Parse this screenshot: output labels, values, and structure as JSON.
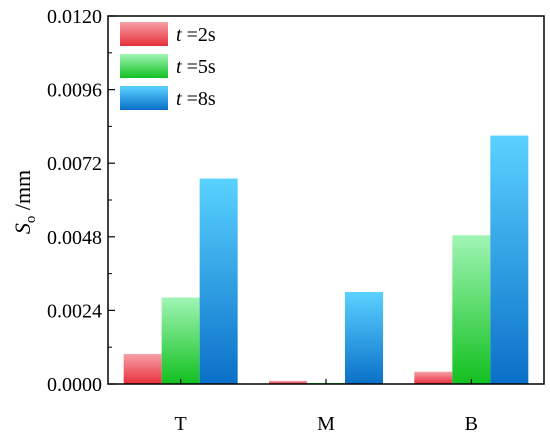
{
  "chart_data": {
    "type": "bar",
    "categories": [
      "T",
      "M",
      "B"
    ],
    "series": [
      {
        "name_var": "t",
        "name_rest": " =2s",
        "values": [
          0.00098,
          0.0001,
          0.0004
        ],
        "color_top": "#f7a0a8",
        "color_bottom": "#e8303a"
      },
      {
        "name_var": "t",
        "name_rest": " =5s",
        "values": [
          0.00282,
          4e-05,
          0.00485
        ],
        "color_top": "#a0f5b4",
        "color_bottom": "#12c020"
      },
      {
        "name_var": "t",
        "name_rest": " =8s",
        "values": [
          0.0067,
          0.003,
          0.0081
        ],
        "color_top": "#5ad2ff",
        "color_bottom": "#0a70c8"
      }
    ],
    "ylabel_main": "S",
    "ylabel_sub": "o",
    "ylabel_unit": " /mm",
    "ylim": [
      0,
      0.012
    ],
    "yticks": [
      "0.0000",
      "0.0024",
      "0.0048",
      "0.0072",
      "0.0096",
      "0.0120"
    ],
    "legend_position": "top-left",
    "grid": false
  }
}
